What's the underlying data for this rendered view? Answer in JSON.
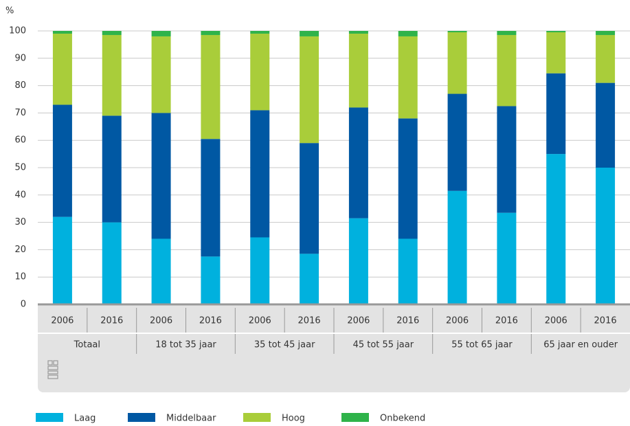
{
  "chart_data": {
    "type": "stacked_bar",
    "y_label": "%",
    "categories": [
      "2006",
      "2016",
      "2006",
      "2016",
      "2006",
      "2016",
      "2006",
      "2016",
      "2006",
      "2016",
      "2006",
      "2016"
    ],
    "groups": [
      "Totaal",
      "18 tot 35 jaar",
      "35 tot 45 jaar",
      "45 tot 55 jaar",
      "55 tot 65 jaar",
      "65 jaar en ouder"
    ],
    "series": [
      {
        "name": "Laag",
        "color": "#00b1de",
        "values": [
          32,
          30,
          24,
          17.5,
          24.5,
          18.5,
          31.5,
          24,
          41.5,
          33.5,
          55,
          50
        ]
      },
      {
        "name": "Middelbaar",
        "color": "#0058a3",
        "values": [
          41,
          39,
          46,
          43,
          46.5,
          40.5,
          40.5,
          44,
          35.5,
          39,
          29.5,
          31
        ]
      },
      {
        "name": "Hoog",
        "color": "#a9cd3a",
        "values": [
          26,
          29.5,
          28,
          38,
          28,
          39,
          27,
          30,
          22.5,
          26,
          15,
          17.5
        ]
      },
      {
        "name": "Onbekend",
        "color": "#2fb34a",
        "values": [
          1,
          1.5,
          2,
          1.5,
          1,
          2,
          1,
          2,
          0.5,
          1.5,
          0.5,
          1.5
        ]
      }
    ],
    "ylim": [
      0,
      100
    ],
    "yticks": [
      0,
      10,
      20,
      30,
      40,
      50,
      60,
      70,
      80,
      90,
      100
    ],
    "grid": true
  }
}
